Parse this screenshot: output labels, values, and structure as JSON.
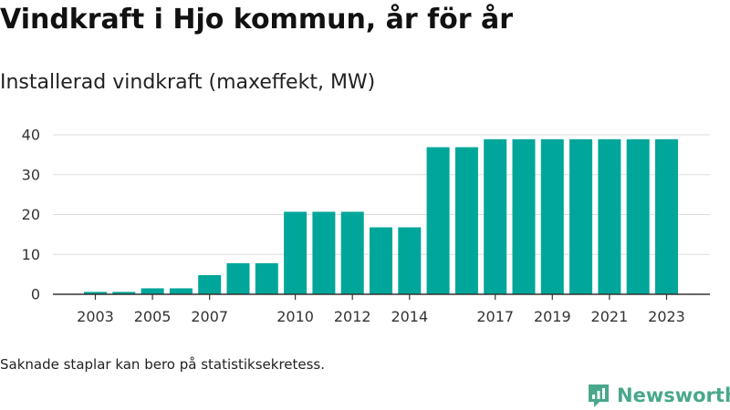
{
  "header": {
    "title": "Vindkraft i Hjo kommun, år för år"
  },
  "chart_data": {
    "type": "bar",
    "title": "Vindkraft i Hjo kommun, år för år",
    "subtitle": "Installerad vindkraft (maxeffekt, MW)",
    "categories": [
      2003,
      2004,
      2005,
      2006,
      2007,
      2008,
      2009,
      2010,
      2011,
      2012,
      2013,
      2014,
      2015,
      2016,
      2017,
      2018,
      2019,
      2020,
      2021,
      2022,
      2023
    ],
    "values": [
      0.6,
      0.6,
      1.5,
      1.5,
      4.8,
      7.8,
      7.8,
      20.7,
      20.7,
      20.7,
      16.8,
      16.8,
      36.9,
      36.9,
      38.9,
      38.9,
      38.9,
      38.9,
      38.9,
      38.9,
      38.9
    ],
    "xtick_labels": [
      "2003",
      "2005",
      "2007",
      "2010",
      "2012",
      "2014",
      "2017",
      "2019",
      "2021",
      "2023"
    ],
    "yticks": [
      0,
      10,
      20,
      30,
      40
    ],
    "ylim": [
      0,
      40
    ],
    "xlabel": "",
    "ylabel": "",
    "grid": true,
    "bar_color": "#00a699",
    "grid_color": "#dddddd",
    "axis_color": "#333333"
  },
  "footer": {
    "note": "Saknade staplar kan bero på statistiksekretess.",
    "brand": "Newsworthy",
    "brand_color": "#49a78c",
    "brand_icon": "newsworthy-logo-icon"
  }
}
